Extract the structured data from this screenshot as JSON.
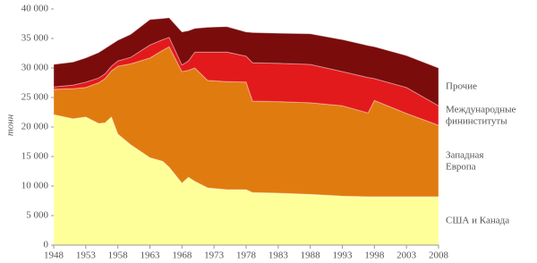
{
  "chart_data": {
    "type": "stacked-area",
    "y_label": "тонн",
    "x": [
      1948,
      1951,
      1953,
      1955,
      1956,
      1957,
      1958,
      1960,
      1963,
      1965,
      1966,
      1968,
      1969,
      1970,
      1972,
      1975,
      1978,
      1979,
      1983,
      1988,
      1993,
      1997,
      1998,
      2003,
      2008
    ],
    "series": [
      {
        "name": "США и Канада",
        "color": "#ffff99",
        "values": [
          22100,
          21400,
          21700,
          20600,
          20700,
          21700,
          18800,
          17000,
          14800,
          14200,
          13200,
          10500,
          11500,
          10800,
          9700,
          9400,
          9400,
          8900,
          8800,
          8600,
          8300,
          8200,
          8200,
          8200,
          8200
        ]
      },
      {
        "name": "Западная Европа",
        "color": "#e07b10",
        "values": [
          4300,
          5100,
          5000,
          6900,
          7500,
          7800,
          11500,
          13700,
          16900,
          18800,
          20400,
          18900,
          18100,
          19200,
          18200,
          18300,
          18200,
          15500,
          15500,
          15500,
          15300,
          14200,
          16300,
          14100,
          12100
        ]
      },
      {
        "name": "Международные фининституты",
        "color": "#e31a1c",
        "values": [
          400,
          600,
          900,
          800,
          800,
          800,
          900,
          1100,
          2200,
          1800,
          1600,
          1100,
          1600,
          2700,
          4800,
          5000,
          4400,
          6500,
          6500,
          6500,
          5800,
          6000,
          3700,
          4400,
          3300
        ]
      },
      {
        "name": "Прочие",
        "color": "#7a0c0c",
        "values": [
          3800,
          3900,
          4100,
          4300,
          4300,
          3700,
          3500,
          3900,
          4300,
          3600,
          3300,
          5600,
          5100,
          4000,
          4200,
          4300,
          4100,
          5100,
          5100,
          5200,
          5400,
          5400,
          5400,
          5400,
          6400
        ]
      }
    ],
    "xlim": [
      1948,
      2008
    ],
    "xticks": [
      1948,
      1953,
      1958,
      1963,
      1968,
      1973,
      1978,
      1983,
      1988,
      1993,
      1998,
      2003,
      2008
    ],
    "ylim": [
      0,
      40000
    ],
    "yticks": [
      0,
      {
        "value": 5000,
        "label": "5 000"
      },
      {
        "value": 10000,
        "label": "10 000"
      },
      {
        "value": 15000,
        "label": "15 000"
      },
      {
        "value": 20000,
        "label": "20 000"
      },
      {
        "value": 25000,
        "label": "25 000"
      },
      {
        "value": 30000,
        "label": "30 000"
      },
      {
        "value": 35000,
        "label": "35 000"
      },
      {
        "value": 40000,
        "label": "40 000"
      }
    ]
  }
}
